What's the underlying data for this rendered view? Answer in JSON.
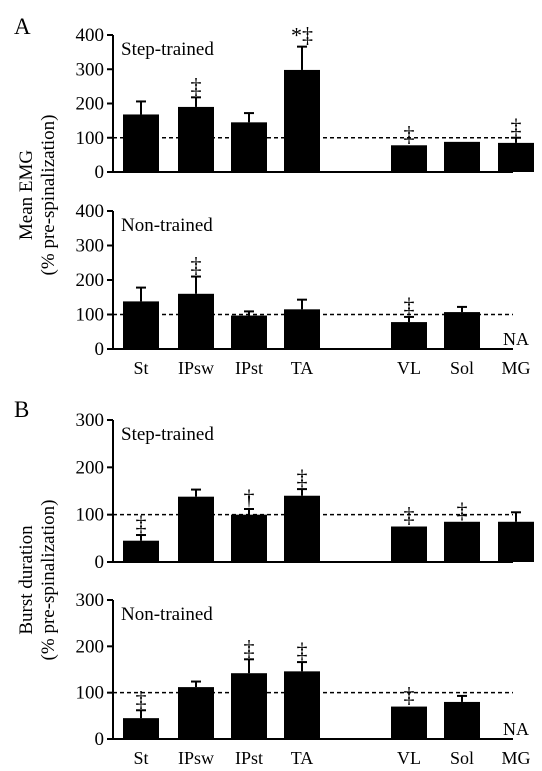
{
  "panel_labels": [
    "A",
    "B"
  ],
  "y_labels": {
    "A": [
      "Mean EMG",
      "(% pre-spinalization)"
    ],
    "B": [
      "Burst duration",
      "(% pre-spinalization)"
    ]
  },
  "chart_data": [
    {
      "type": "bar",
      "panel": "A",
      "title": "Step-trained",
      "categories": [
        "St",
        "IPsw",
        "IPst",
        "TA",
        "VL",
        "Sol",
        "MG"
      ],
      "values": [
        168,
        190,
        145,
        298,
        78,
        88,
        85
      ],
      "errors": [
        38,
        28,
        27,
        68,
        0,
        0,
        15
      ],
      "markers": [
        "",
        "‡",
        "",
        "*‡",
        "‡",
        "",
        "‡"
      ],
      "ylim": [
        0,
        400
      ],
      "yticks": [
        0,
        100,
        200,
        300,
        400
      ],
      "reference_line": 100,
      "show_category_labels": false
    },
    {
      "type": "bar",
      "panel": "A",
      "title": "Non-trained",
      "categories": [
        "St",
        "IPsw",
        "IPst",
        "TA",
        "VL",
        "Sol",
        "MG"
      ],
      "values": [
        138,
        160,
        97,
        115,
        78,
        107,
        null
      ],
      "errors": [
        40,
        50,
        12,
        28,
        15,
        15,
        0
      ],
      "markers": [
        "",
        "‡",
        "",
        "",
        "‡",
        "",
        ""
      ],
      "missing_labels": [
        "",
        "",
        "",
        "",
        "",
        "",
        "NA"
      ],
      "ylim": [
        0,
        400
      ],
      "yticks": [
        0,
        100,
        200,
        300,
        400
      ],
      "reference_line": 100,
      "show_category_labels": true
    },
    {
      "type": "bar",
      "panel": "B",
      "title": "Step-trained",
      "categories": [
        "St",
        "IPsw",
        "IPst",
        "TA",
        "VL",
        "Sol",
        "MG"
      ],
      "values": [
        45,
        138,
        100,
        140,
        75,
        85,
        85
      ],
      "errors": [
        12,
        15,
        12,
        14,
        0,
        0,
        20
      ],
      "markers": [
        "‡",
        "",
        "†",
        "‡",
        "‡",
        "‡",
        ""
      ],
      "ylim": [
        0,
        300
      ],
      "yticks": [
        0,
        100,
        200,
        300
      ],
      "reference_line": 100,
      "show_category_labels": false
    },
    {
      "type": "bar",
      "panel": "B",
      "title": "Non-trained",
      "categories": [
        "St",
        "IPsw",
        "IPst",
        "TA",
        "VL",
        "Sol",
        "MG"
      ],
      "values": [
        45,
        112,
        142,
        146,
        70,
        80,
        null
      ],
      "errors": [
        17,
        12,
        30,
        20,
        0,
        13,
        0
      ],
      "markers": [
        "‡",
        "",
        "‡",
        "‡",
        "‡",
        "",
        ""
      ],
      "missing_labels": [
        "",
        "",
        "",
        "",
        "",
        "",
        "NA"
      ],
      "ylim": [
        0,
        300
      ],
      "yticks": [
        0,
        100,
        200,
        300
      ],
      "reference_line": 100,
      "show_category_labels": true
    }
  ]
}
